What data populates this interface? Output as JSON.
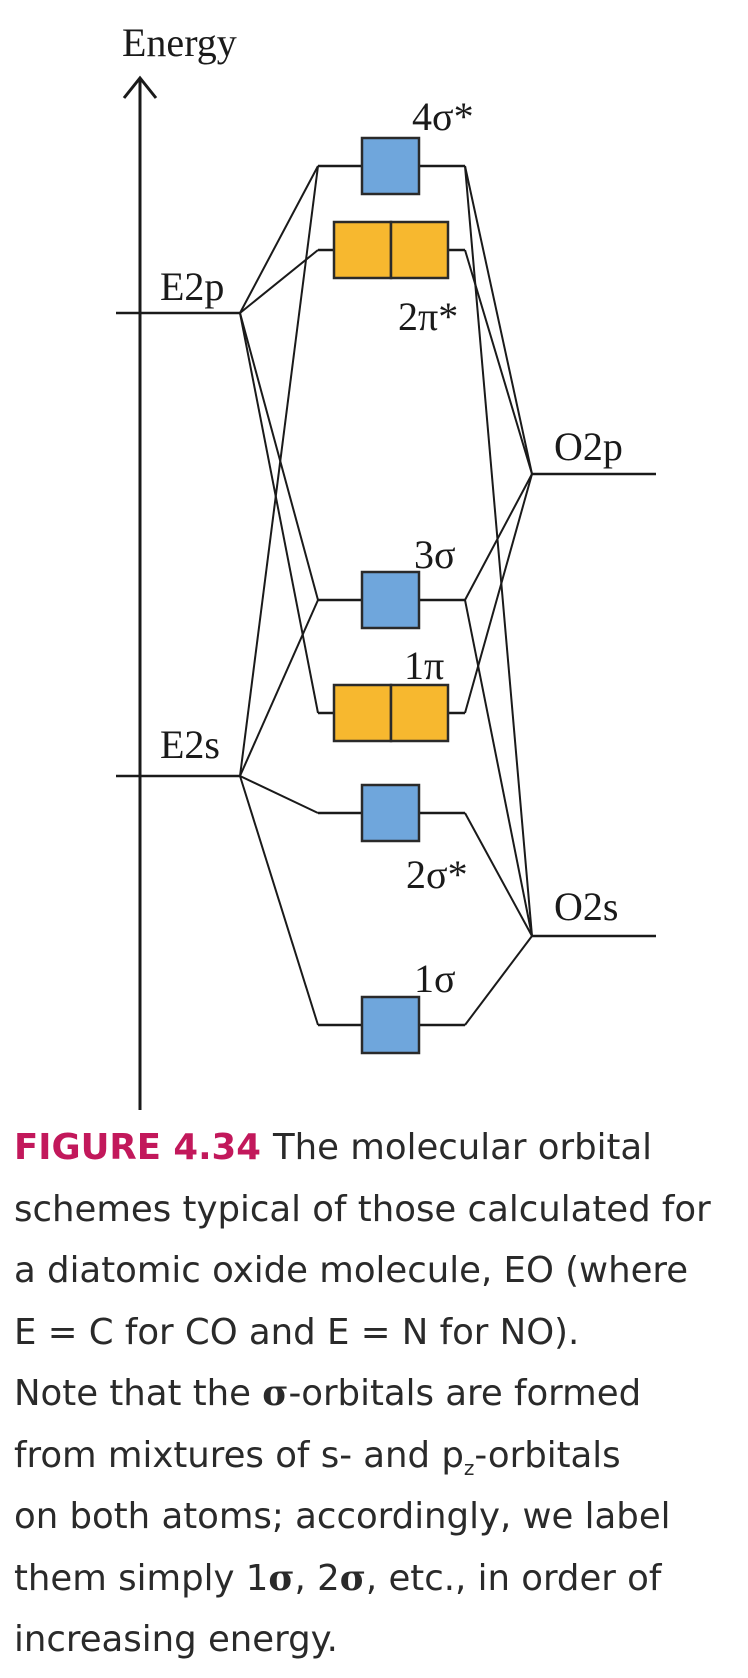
{
  "diagram": {
    "axis_label": "Energy",
    "atomic_levels": {
      "E2p": "E2p",
      "E2s": "E2s",
      "O2p": "O2p",
      "O2s": "O2s"
    },
    "molecular_orbitals": {
      "sigma4_star": "4σ*",
      "pi2_star": "2π*",
      "sigma3": "3σ",
      "pi1": "1π",
      "sigma2_star": "2σ*",
      "sigma1": "1σ"
    },
    "colors": {
      "sigma_box": "#6fa6dc",
      "pi_box": "#f7b82f",
      "line": "#1a1a1a",
      "caption_label": "#c2185b"
    }
  },
  "caption": {
    "figure_label": "FIGURE 4.34",
    "line1": "The molecular orbital",
    "line2": "schemes typical of those calculated for",
    "line3": "a diatomic oxide molecule, EO (where",
    "line4": "E = C for CO and E = N for NO).",
    "line5_a": "Note that the ",
    "line5_sym": "σ",
    "line5_b": "-orbitals are formed",
    "line6_a": "from mixtures of s- and p",
    "line6_sub": "z",
    "line6_b": "-orbitals",
    "line7": "on both atoms; accordingly, we label",
    "line8_a": "them simply 1",
    "line8_sym1": "σ",
    "line8_b": ", 2",
    "line8_sym2": "σ",
    "line8_c": ", etc., in order of",
    "line9": "increasing energy."
  }
}
